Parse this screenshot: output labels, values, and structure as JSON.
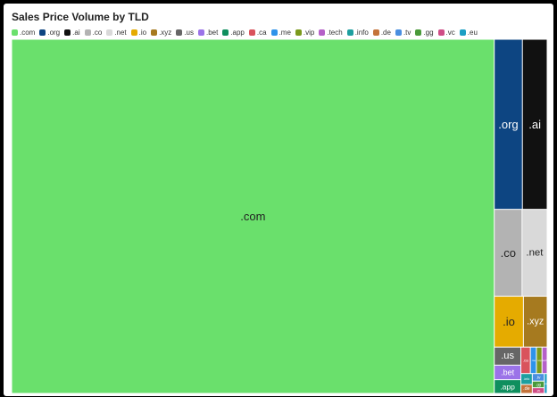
{
  "chart_data": {
    "type": "treemap",
    "title": "Sales Price Volume by TLD",
    "legend_position": "top",
    "categories": [
      ".com",
      ".org",
      ".ai",
      ".co",
      ".net",
      ".io",
      ".xyz",
      ".us",
      ".bet",
      ".app",
      ".ca",
      ".me",
      ".vip",
      ".tech",
      ".info",
      ".de",
      ".tv",
      ".gg",
      ".vc",
      ".eu"
    ],
    "values": [
      7500,
      210,
      185,
      106,
      96,
      65,
      53,
      21,
      17,
      16,
      11,
      7,
      6.5,
      6,
      5.5,
      4.5,
      4,
      3.5,
      3,
      2.5
    ],
    "colors": [
      "#6ae06c",
      "#0d4582",
      "#111111",
      "#b3b3b3",
      "#d9d9d9",
      "#e5ab00",
      "#a67a1f",
      "#666666",
      "#9b73e8",
      "#0f8f5e",
      "#d9535c",
      "#2e93ea",
      "#7b9a1c",
      "#b561c8",
      "#1d9f9f",
      "#c4733a",
      "#4a8fe0",
      "#4a9a3a",
      "#cf4d86",
      "#1b9fc4"
    ],
    "label_colors": [
      "#222222",
      "#ffffff",
      "#ffffff",
      "#222222",
      "#222222",
      "#222222",
      "#ffffff",
      "#ffffff",
      "#ffffff",
      "#ffffff",
      "#ffffff",
      "#ffffff",
      "#ffffff",
      "#ffffff",
      "#ffffff",
      "#ffffff",
      "#ffffff",
      "#ffffff",
      "#ffffff",
      "#ffffff"
    ]
  }
}
